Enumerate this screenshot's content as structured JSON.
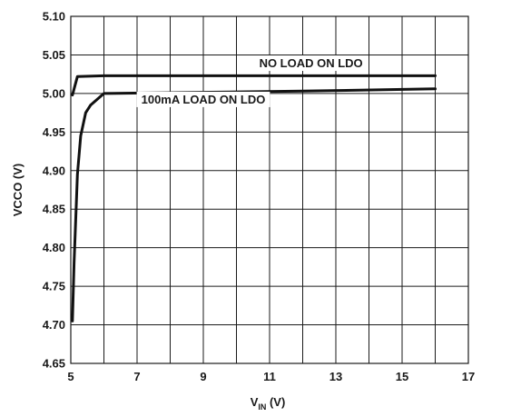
{
  "chart_data": {
    "type": "line",
    "xlabel": {
      "main": "V",
      "sub": "IN",
      "unit": " (V)"
    },
    "ylabel": "VCCO (V)",
    "xlim": [
      5,
      17
    ],
    "ylim": [
      4.65,
      5.1
    ],
    "xticks": [
      5,
      7,
      9,
      11,
      13,
      15,
      17
    ],
    "yticks": [
      4.65,
      4.7,
      4.75,
      4.8,
      4.85,
      4.9,
      4.95,
      5.0,
      5.05,
      5.1
    ],
    "xtick_labels": [
      "5",
      "7",
      "9",
      "11",
      "13",
      "15",
      "17"
    ],
    "ytick_labels": [
      "4.65",
      "4.70",
      "4.75",
      "4.80",
      "4.85",
      "4.90",
      "4.95",
      "5.00",
      "5.05",
      "5.10"
    ],
    "x_gridlines": [
      5,
      6,
      7,
      8,
      9,
      10,
      11,
      12,
      13,
      14,
      15,
      16,
      17
    ],
    "grid": true,
    "series": [
      {
        "annotation": "NO LOAD ON LDO",
        "points": [
          [
            5.05,
            4.998
          ],
          [
            5.2,
            5.022
          ],
          [
            6.0,
            5.023
          ],
          [
            16.0,
            5.023
          ]
        ]
      },
      {
        "annotation": "100mA LOAD ON LDO",
        "points": [
          [
            5.05,
            4.705
          ],
          [
            5.1,
            4.78
          ],
          [
            5.2,
            4.895
          ],
          [
            5.3,
            4.945
          ],
          [
            5.45,
            4.975
          ],
          [
            5.6,
            4.985
          ],
          [
            6.0,
            5.0
          ],
          [
            8.0,
            5.001
          ],
          [
            12.0,
            5.003
          ],
          [
            16.0,
            5.006
          ]
        ]
      }
    ]
  }
}
